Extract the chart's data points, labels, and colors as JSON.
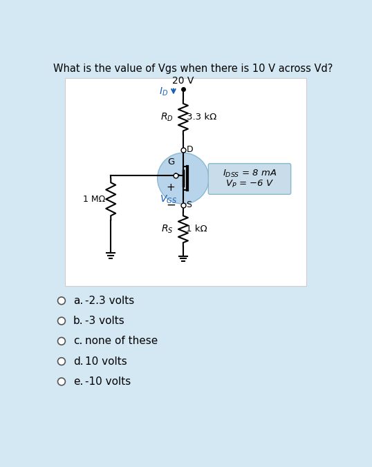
{
  "question": "What is the value of Vgs when there is 10 V across Vd?",
  "bg_outer": "#d4e8f4",
  "bg_inner": "#ffffff",
  "options": [
    {
      "label": "a.",
      "text": "-2.3 volts"
    },
    {
      "label": "b.",
      "text": "-3 volts"
    },
    {
      "label": "c.",
      "text": "none of these"
    },
    {
      "label": "d.",
      "text": "10 volts"
    },
    {
      "label": "e.",
      "text": "-10 volts"
    }
  ],
  "circuit": {
    "mosfet_circle_color": "#b8d4ea",
    "info_box_color": "#c8dcea",
    "arrow_color": "#1a5eb8",
    "vgs_color": "#1a5eb8",
    "wire_color": "#000000",
    "text_color": "#000000"
  }
}
